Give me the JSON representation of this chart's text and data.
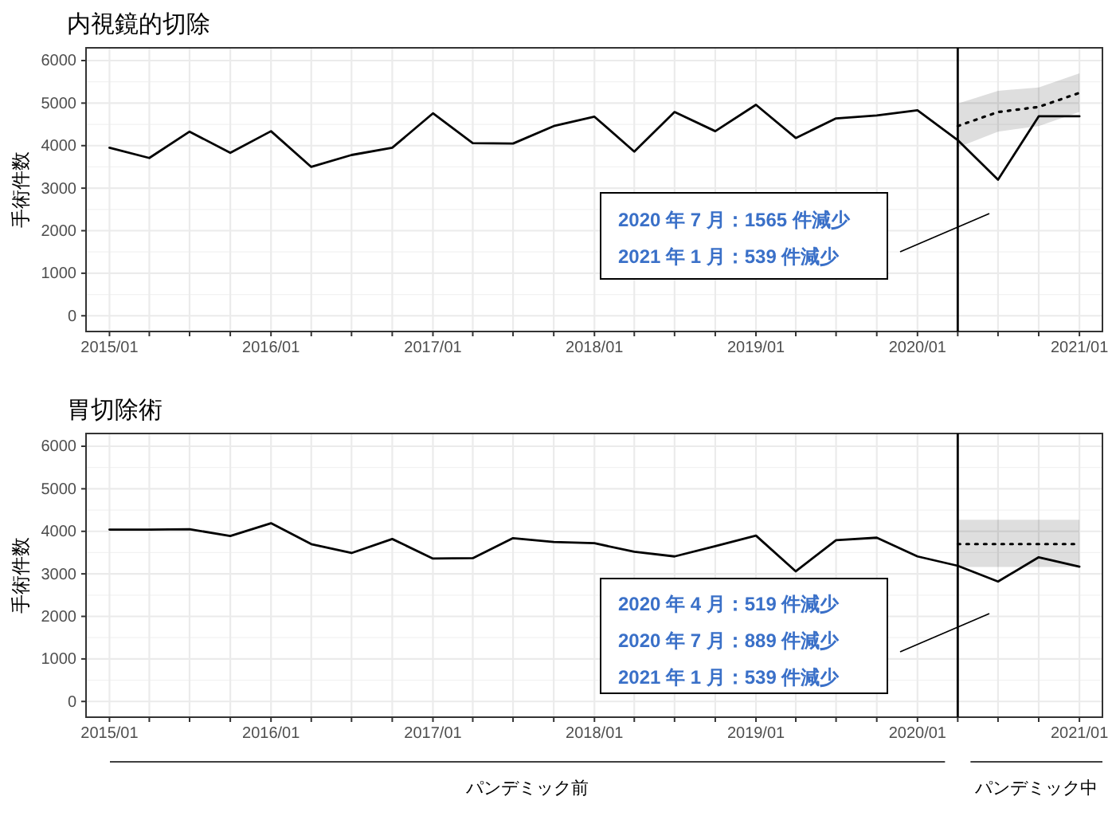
{
  "chart_data": [
    {
      "type": "line",
      "title": "内視鏡的切除",
      "ylabel": "手術件数",
      "xlim": [
        "2014-11-09",
        "2021-02-22"
      ],
      "ylim": [
        -370,
        6300
      ],
      "xticks": [
        {
          "value": "2015-01",
          "label": "2015/01"
        },
        {
          "value": "2015-04",
          "label": null
        },
        {
          "value": "2015-07",
          "label": null
        },
        {
          "value": "2015-10",
          "label": null
        },
        {
          "value": "2016-01",
          "label": "2016/01"
        },
        {
          "value": "2016-04",
          "label": null
        },
        {
          "value": "2016-07",
          "label": null
        },
        {
          "value": "2016-10",
          "label": null
        },
        {
          "value": "2017-01",
          "label": "2017/01"
        },
        {
          "value": "2017-04",
          "label": null
        },
        {
          "value": "2017-07",
          "label": null
        },
        {
          "value": "2017-10",
          "label": null
        },
        {
          "value": "2018-01",
          "label": "2018/01"
        },
        {
          "value": "2018-04",
          "label": null
        },
        {
          "value": "2018-07",
          "label": null
        },
        {
          "value": "2018-10",
          "label": null
        },
        {
          "value": "2019-01",
          "label": "2019/01"
        },
        {
          "value": "2019-04",
          "label": null
        },
        {
          "value": "2019-07",
          "label": null
        },
        {
          "value": "2019-10",
          "label": null
        },
        {
          "value": "2020-01",
          "label": "2020/01"
        },
        {
          "value": "2020-04",
          "label": null
        },
        {
          "value": "2020-07",
          "label": null
        },
        {
          "value": "2020-10",
          "label": null
        },
        {
          "value": "2021-01",
          "label": "2021/01"
        }
      ],
      "yticks": [
        0,
        1000,
        2000,
        3000,
        4000,
        5000,
        6000
      ],
      "grid": true,
      "series": [
        {
          "color": "#000000",
          "line_style": "solid",
          "x": [
            "2015-01",
            "2015-04",
            "2015-07",
            "2015-10",
            "2016-01",
            "2016-04",
            "2016-07",
            "2016-10",
            "2017-01",
            "2017-04",
            "2017-07",
            "2017-10",
            "2018-01",
            "2018-04",
            "2018-07",
            "2018-10",
            "2019-01",
            "2019-04",
            "2019-07",
            "2019-10",
            "2020-01",
            "2020-04",
            "2020-07",
            "2020-10",
            "2021-01"
          ],
          "values": [
            3950,
            3710,
            4330,
            3830,
            4340,
            3500,
            3780,
            3950,
            4760,
            4060,
            4050,
            4460,
            4680,
            3860,
            4790,
            4340,
            4960,
            4180,
            4640,
            4710,
            4830,
            4130,
            3200,
            4690,
            4690
          ]
        },
        {
          "color": "#000000",
          "line_style": "dotted",
          "x": [
            "2020-04",
            "2020-07",
            "2020-10",
            "2021-01"
          ],
          "values": [
            4460,
            4790,
            4910,
            5240
          ],
          "lower": [
            3960,
            4330,
            4460,
            4790
          ],
          "upper": [
            4990,
            5290,
            5370,
            5700
          ]
        }
      ],
      "ref_lines": [
        {
          "axis": "x",
          "value": "2020-04",
          "color": "#000000"
        }
      ],
      "annotations": [
        "2020 年 7 月：1565 件減少",
        "2021 年 1 月：539 件減少"
      ]
    },
    {
      "type": "line",
      "title": "胃切除術",
      "ylabel": "手術件数",
      "xlim": [
        "2014-11-09",
        "2021-02-22"
      ],
      "ylim": [
        -370,
        6300
      ],
      "xticks": [
        {
          "value": "2015-01",
          "label": "2015/01"
        },
        {
          "value": "2015-04",
          "label": null
        },
        {
          "value": "2015-07",
          "label": null
        },
        {
          "value": "2015-10",
          "label": null
        },
        {
          "value": "2016-01",
          "label": "2016/01"
        },
        {
          "value": "2016-04",
          "label": null
        },
        {
          "value": "2016-07",
          "label": null
        },
        {
          "value": "2016-10",
          "label": null
        },
        {
          "value": "2017-01",
          "label": "2017/01"
        },
        {
          "value": "2017-04",
          "label": null
        },
        {
          "value": "2017-07",
          "label": null
        },
        {
          "value": "2017-10",
          "label": null
        },
        {
          "value": "2018-01",
          "label": "2018/01"
        },
        {
          "value": "2018-04",
          "label": null
        },
        {
          "value": "2018-07",
          "label": null
        },
        {
          "value": "2018-10",
          "label": null
        },
        {
          "value": "2019-01",
          "label": "2019/01"
        },
        {
          "value": "2019-04",
          "label": null
        },
        {
          "value": "2019-07",
          "label": null
        },
        {
          "value": "2019-10",
          "label": null
        },
        {
          "value": "2020-01",
          "label": "2020/01"
        },
        {
          "value": "2020-04",
          "label": null
        },
        {
          "value": "2020-07",
          "label": null
        },
        {
          "value": "2020-10",
          "label": null
        },
        {
          "value": "2021-01",
          "label": "2021/01"
        }
      ],
      "yticks": [
        0,
        1000,
        2000,
        3000,
        4000,
        5000,
        6000
      ],
      "grid": true,
      "series": [
        {
          "color": "#000000",
          "line_style": "solid",
          "x": [
            "2015-01",
            "2015-04",
            "2015-07",
            "2015-10",
            "2016-01",
            "2016-04",
            "2016-07",
            "2016-10",
            "2017-01",
            "2017-04",
            "2017-07",
            "2017-10",
            "2018-01",
            "2018-04",
            "2018-07",
            "2018-10",
            "2019-01",
            "2019-04",
            "2019-07",
            "2019-10",
            "2020-01",
            "2020-04",
            "2020-07",
            "2020-10",
            "2021-01"
          ],
          "values": [
            4040,
            4040,
            4050,
            3890,
            4190,
            3700,
            3490,
            3820,
            3360,
            3370,
            3840,
            3750,
            3720,
            3520,
            3410,
            3650,
            3900,
            3060,
            3790,
            3850,
            3410,
            3190,
            2820,
            3390,
            3170
          ]
        },
        {
          "color": "#000000",
          "line_style": "dotted",
          "x": [
            "2020-04",
            "2020-07",
            "2020-10",
            "2021-01"
          ],
          "values": [
            3700,
            3700,
            3700,
            3700
          ],
          "lower": [
            3160,
            3160,
            3160,
            3160
          ],
          "upper": [
            4270,
            4270,
            4270,
            4270
          ]
        }
      ],
      "ref_lines": [
        {
          "axis": "x",
          "value": "2020-04",
          "color": "#000000"
        }
      ],
      "annotations": [
        "2020 年 4 月：519 件減少",
        "2020 年 7 月：889 件減少",
        "2021 年 1 月：539 件減少",
        "パンデミック前",
        "パンデミック中"
      ]
    }
  ]
}
